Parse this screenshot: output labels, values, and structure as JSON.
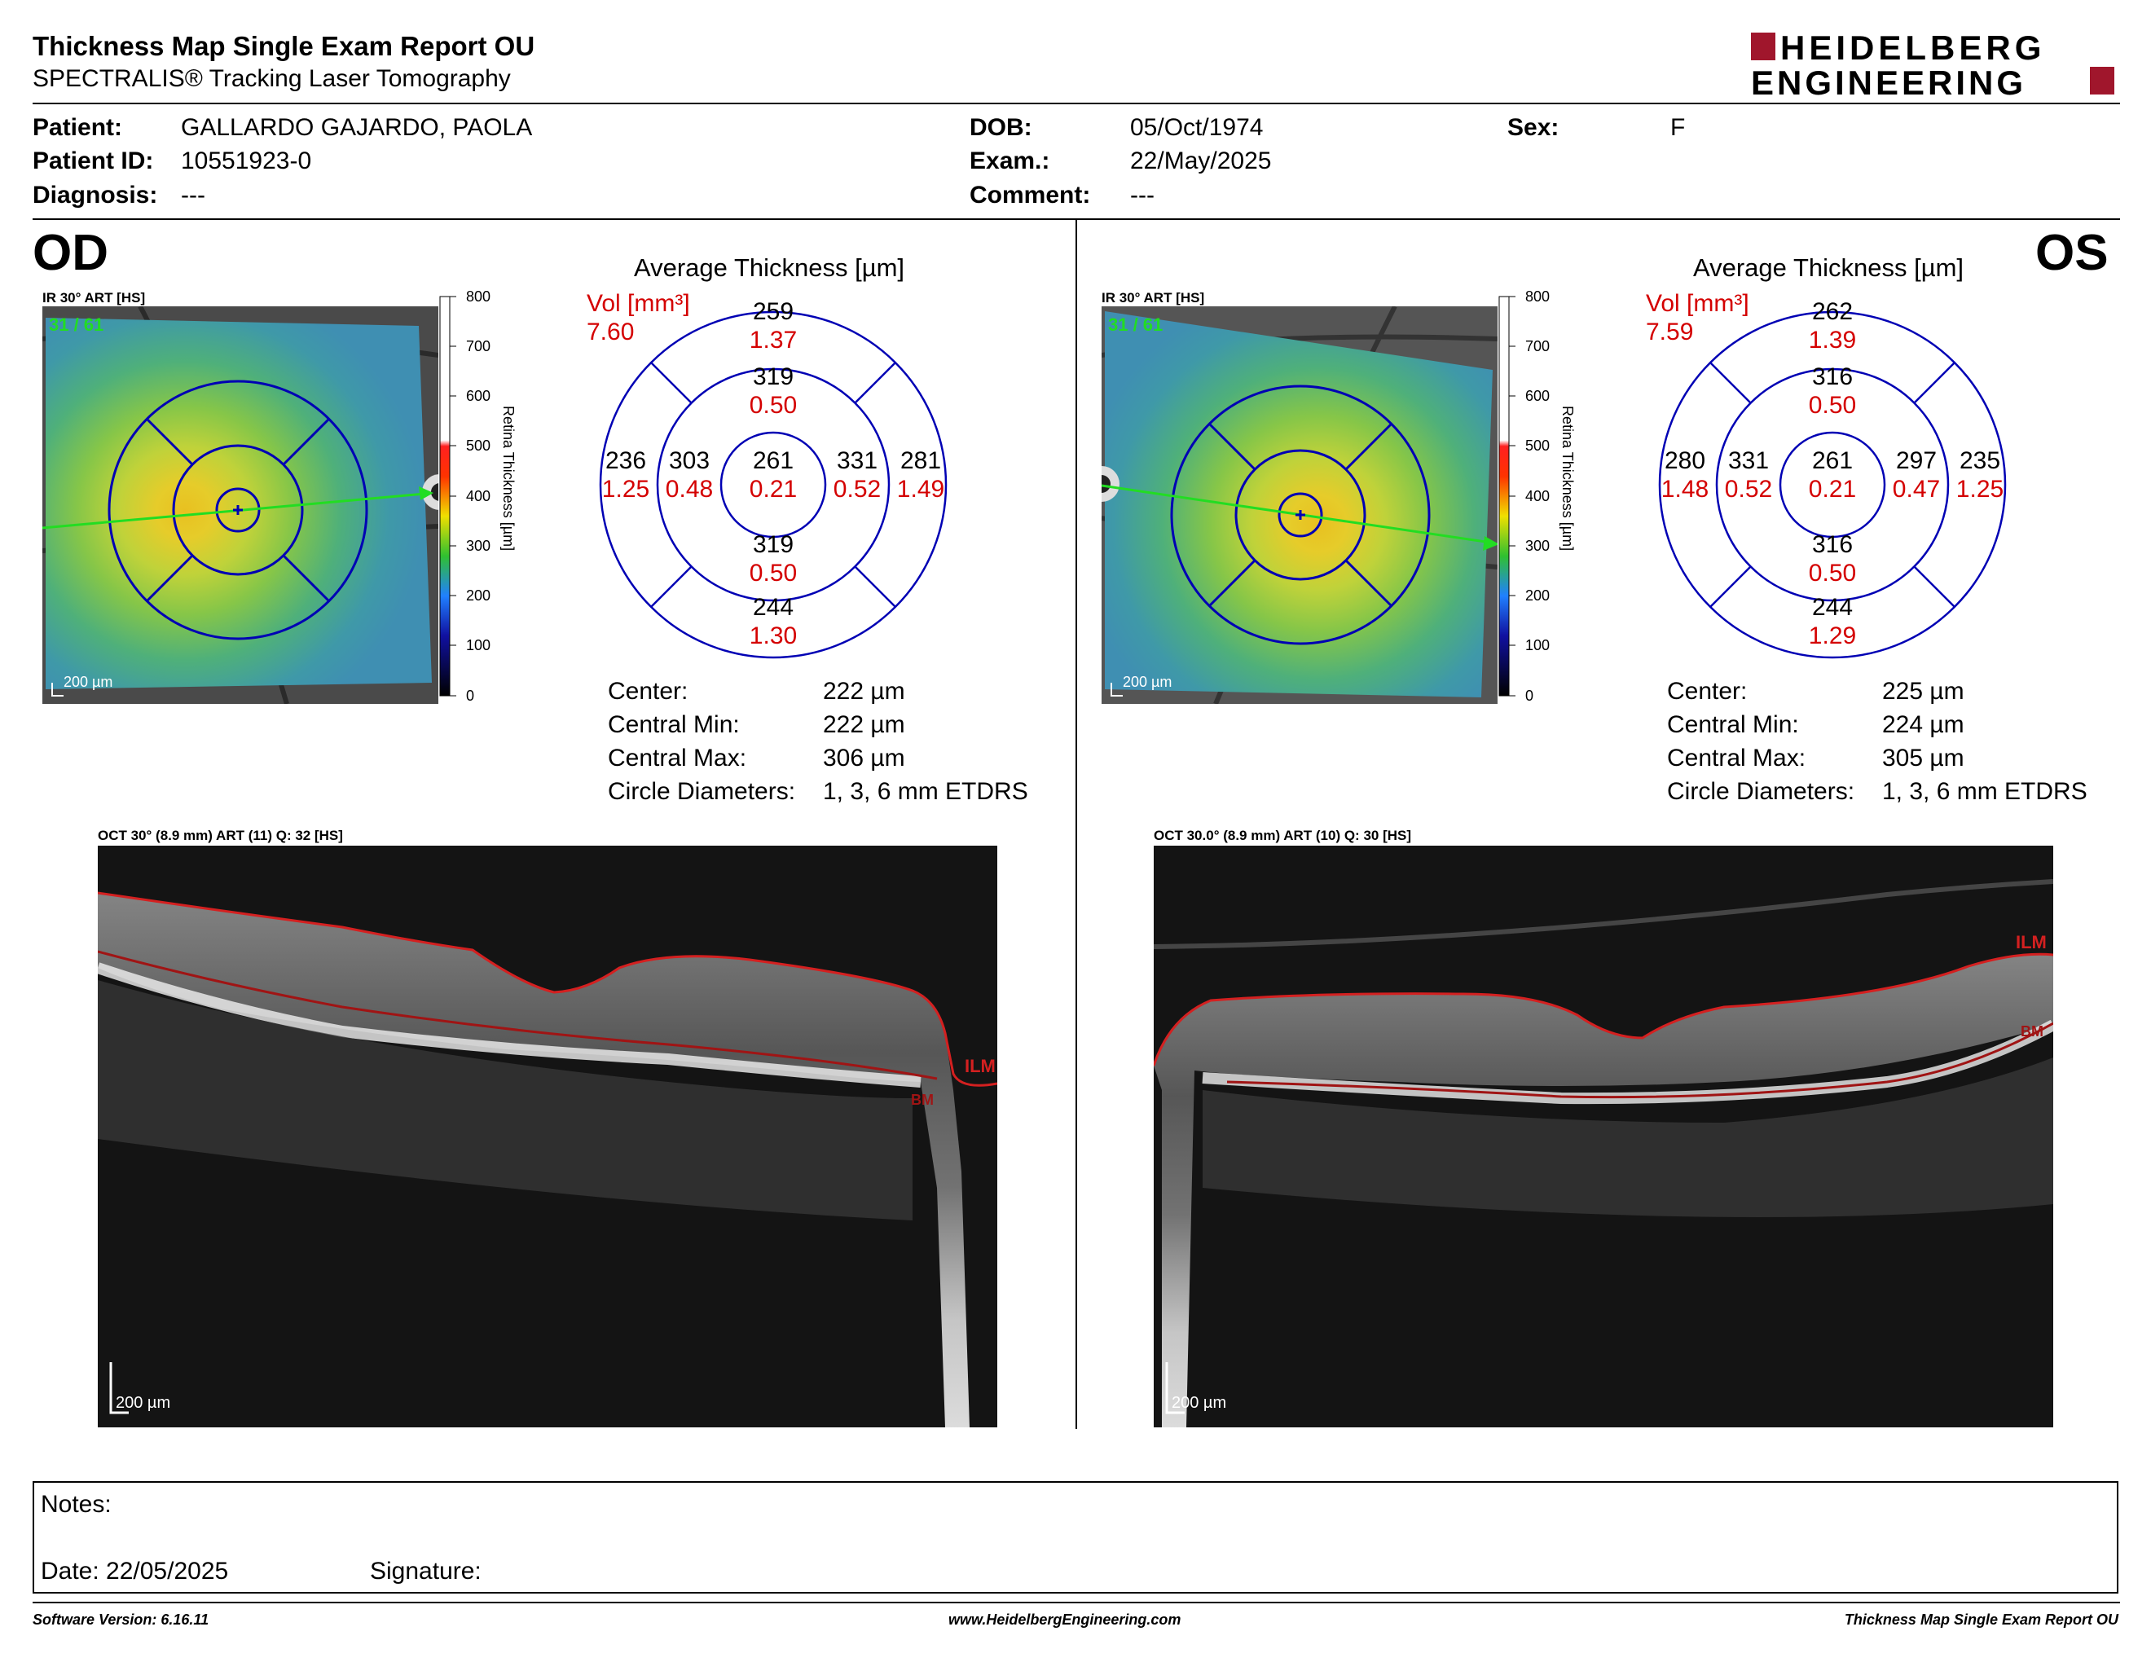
{
  "header": {
    "title": "Thickness Map Single Exam Report OU",
    "subtitle": "SPECTRALIS® Tracking Laser Tomography",
    "logo_line1": "HEIDELBERG",
    "logo_line2": "ENGINEERING",
    "brand_color": "#a0162c"
  },
  "patient": {
    "patient_label": "Patient:",
    "patient_value": "GALLARDO GAJARDO, PAOLA",
    "id_label": "Patient ID:",
    "id_value": "10551923-0",
    "diagnosis_label": "Diagnosis:",
    "diagnosis_value": "---",
    "dob_label": "DOB:",
    "dob_value": "05/Oct/1974",
    "exam_label": "Exam.:",
    "exam_value": "22/May/2025",
    "comment_label": "Comment:",
    "comment_value": "---",
    "sex_label": "Sex:",
    "sex_value": "F"
  },
  "scale": {
    "ticks": [
      "800",
      "700",
      "600",
      "500",
      "400",
      "300",
      "200",
      "100",
      "0"
    ],
    "axis_label": "Retina Thickness [µm]"
  },
  "od": {
    "eye": "OD",
    "fundus_label": "IR 30° ART [HS]",
    "fundus_counter": "31 / 61",
    "scalebar": "200 µm",
    "avg_title": "Average Thickness [µm]",
    "vol_label": "Vol [mm³]",
    "vol_total": "7.60",
    "etdrs": {
      "center": {
        "t": "261",
        "v": "0.21"
      },
      "inner_sup": {
        "t": "319",
        "v": "0.50"
      },
      "inner_inf": {
        "t": "319",
        "v": "0.50"
      },
      "inner_left": {
        "t": "303",
        "v": "0.48"
      },
      "inner_right": {
        "t": "331",
        "v": "0.52"
      },
      "outer_sup": {
        "t": "259",
        "v": "1.37"
      },
      "outer_inf": {
        "t": "244",
        "v": "1.30"
      },
      "outer_left": {
        "t": "236",
        "v": "1.25"
      },
      "outer_right": {
        "t": "281",
        "v": "1.49"
      }
    },
    "stats": [
      {
        "label": "Center:",
        "value": "222 µm"
      },
      {
        "label": "Central Min:",
        "value": "222 µm"
      },
      {
        "label": "Central Max:",
        "value": "306 µm"
      },
      {
        "label": "Circle Diameters:",
        "value": "1, 3, 6 mm ETDRS"
      }
    ],
    "oct_label": "OCT 30° (8.9 mm) ART (11) Q: 32 [HS]",
    "ilm": "ILM",
    "bm": "BM",
    "oct_scalebar": "200 µm"
  },
  "os": {
    "eye": "OS",
    "fundus_label": "IR 30° ART [HS]",
    "fundus_counter": "31 / 61",
    "scalebar": "200 µm",
    "avg_title": "Average Thickness [µm]",
    "vol_label": "Vol [mm³]",
    "vol_total": "7.59",
    "etdrs": {
      "center": {
        "t": "261",
        "v": "0.21"
      },
      "inner_sup": {
        "t": "316",
        "v": "0.50"
      },
      "inner_inf": {
        "t": "316",
        "v": "0.50"
      },
      "inner_left": {
        "t": "331",
        "v": "0.52"
      },
      "inner_right": {
        "t": "297",
        "v": "0.47"
      },
      "outer_sup": {
        "t": "262",
        "v": "1.39"
      },
      "outer_inf": {
        "t": "244",
        "v": "1.29"
      },
      "outer_left": {
        "t": "280",
        "v": "1.48"
      },
      "outer_right": {
        "t": "235",
        "v": "1.25"
      }
    },
    "stats": [
      {
        "label": "Center:",
        "value": "225 µm"
      },
      {
        "label": "Central Min:",
        "value": "224 µm"
      },
      {
        "label": "Central Max:",
        "value": "305 µm"
      },
      {
        "label": "Circle Diameters:",
        "value": "1, 3, 6 mm ETDRS"
      }
    ],
    "oct_label": "OCT 30.0° (8.9 mm) ART (10) Q: 30 [HS]",
    "ilm": "ILM",
    "bm": "BM",
    "oct_scalebar": "200 µm"
  },
  "notes": {
    "notes_label": "Notes:",
    "date_label": "Date: 22/05/2025",
    "signature_label": "Signature:"
  },
  "footer": {
    "software": "Software Version: 6.16.11",
    "website": "www.HeidelbergEngineering.com",
    "report": "Thickness Map Single Exam Report OU"
  }
}
